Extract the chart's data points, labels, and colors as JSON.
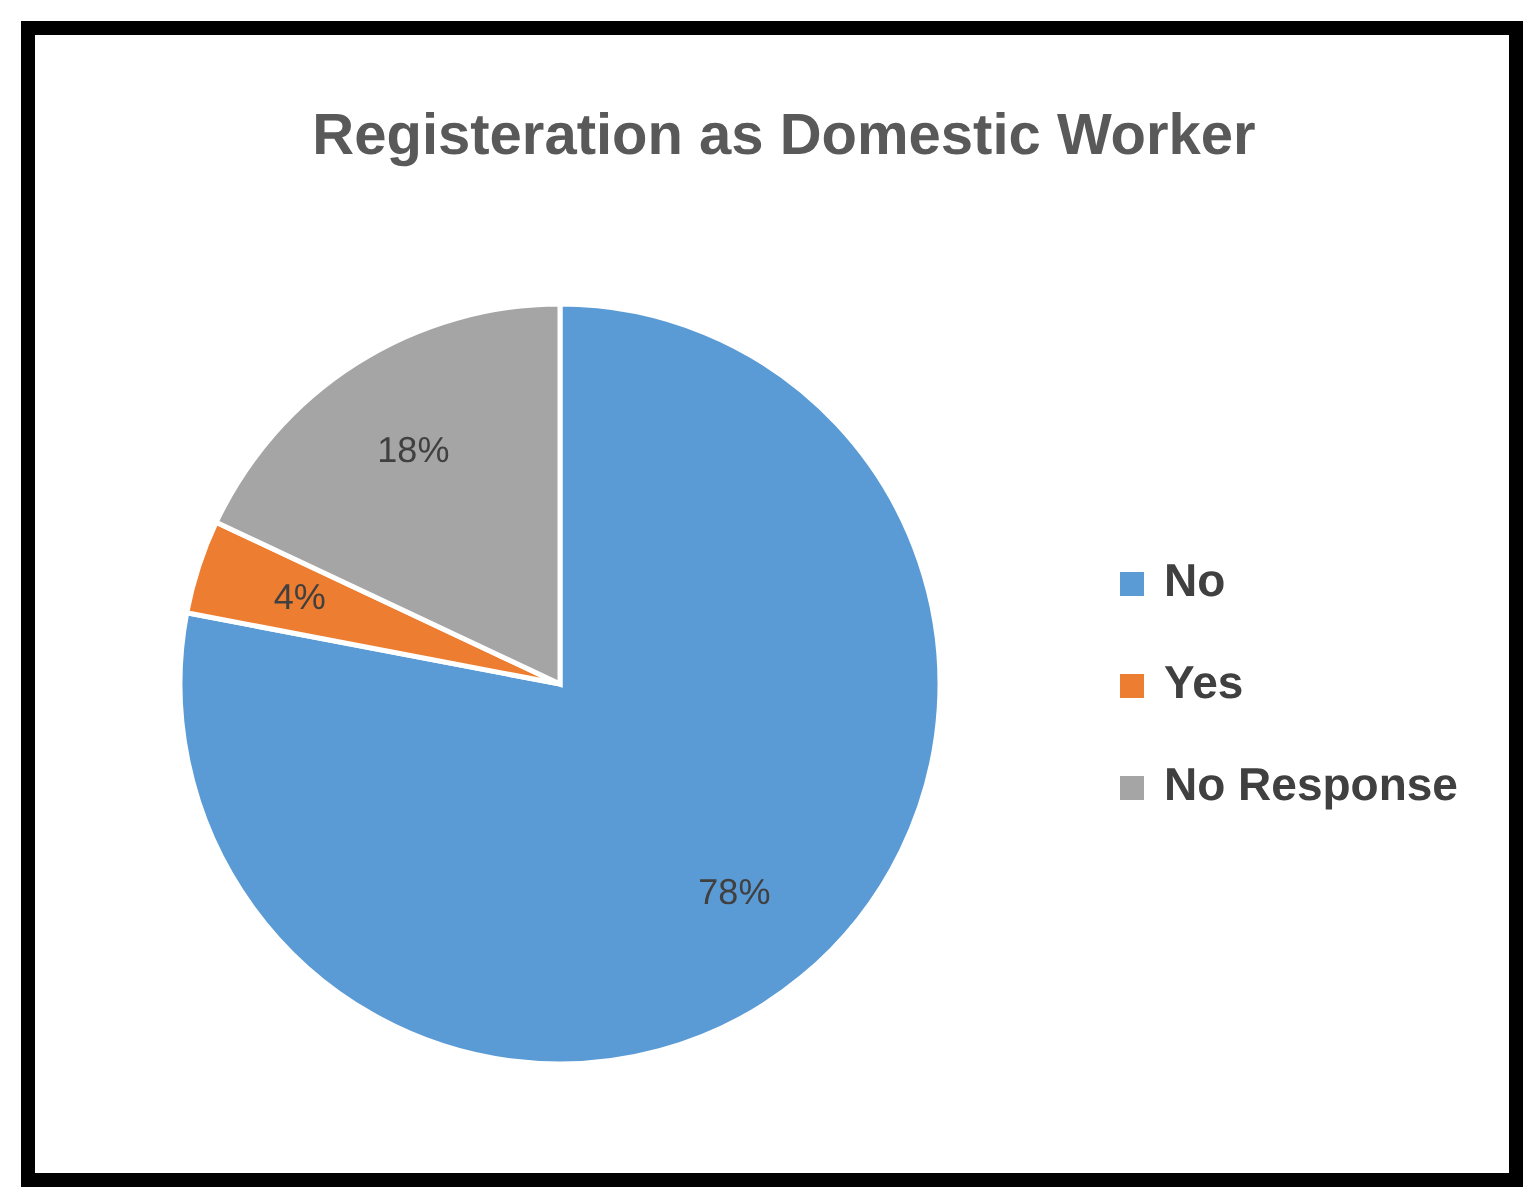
{
  "chart_data": {
    "type": "pie",
    "title": "Registeration as Domestic Worker",
    "categories": [
      "No",
      "Yes",
      "No Response"
    ],
    "values": [
      78,
      4,
      18
    ],
    "colors": [
      "#5b9bd5",
      "#ed7d31",
      "#a5a5a5"
    ],
    "value_labels": [
      "78%",
      "4%",
      "18%"
    ],
    "legend": "right"
  }
}
